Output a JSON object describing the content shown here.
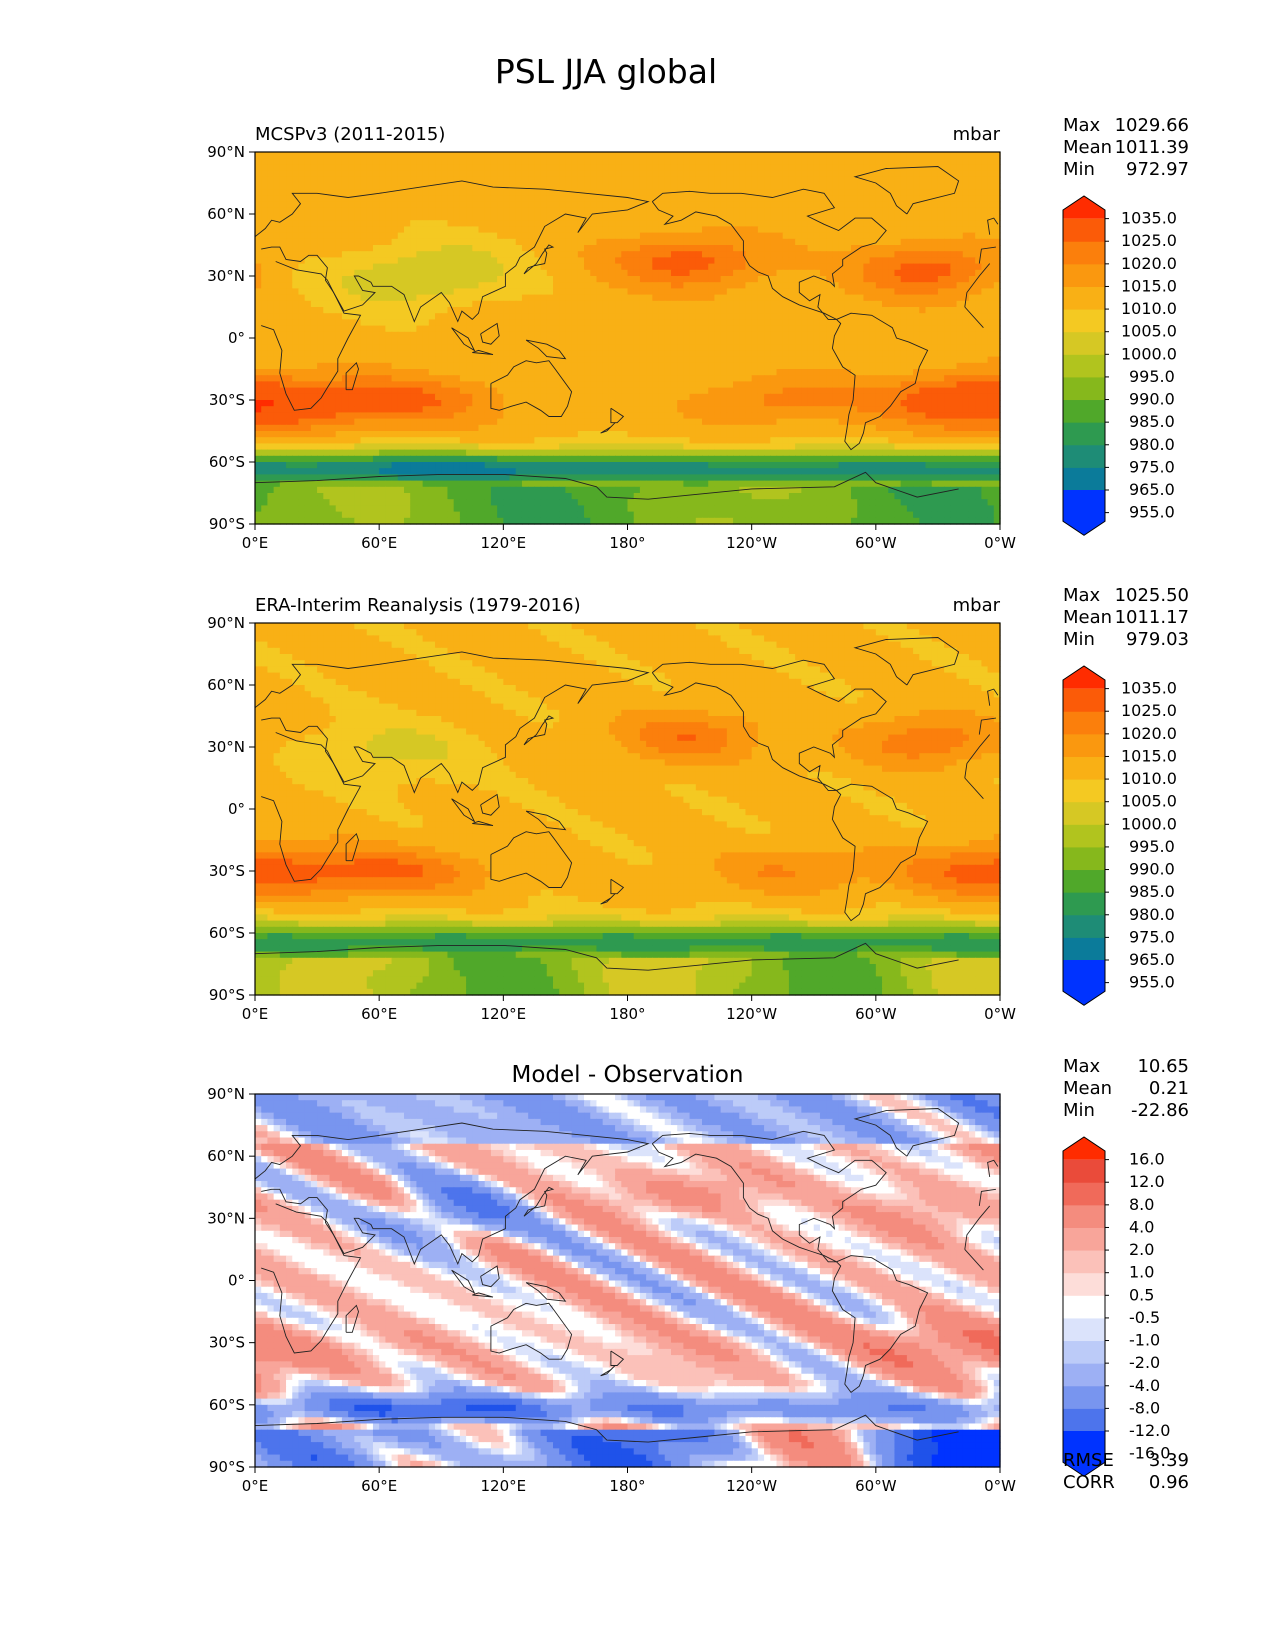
{
  "title": "PSL JJA global",
  "colors": {
    "abs_levels": [
      "#0033ff",
      "#0a55d6",
      "#0b7b9a",
      "#1e8c76",
      "#2e9a50",
      "#50a82a",
      "#86b81c",
      "#b1c41e",
      "#d6c824",
      "#f4c922",
      "#f9b015",
      "#fa980f",
      "#fb7f0c",
      "#fb5b08",
      "#ff2c00"
    ],
    "diff_levels": [
      "#0033ff",
      "#1f52ea",
      "#4d74ec",
      "#7895ef",
      "#9db0f4",
      "#bccbf8",
      "#dbe3fb",
      "#ffffff",
      "#fdddd9",
      "#fbc1b9",
      "#f8a59a",
      "#f48c7e",
      "#f06a5a",
      "#ea4b3a",
      "#ff2c00"
    ],
    "coast": "#222222"
  },
  "chart_data": [
    {
      "type": "heatmap",
      "title": "MCSPv3 (2011-2015)",
      "units": "mbar",
      "stats": [
        {
          "label": "Max",
          "value": "1029.66"
        },
        {
          "label": "Mean",
          "value": "1011.39"
        },
        {
          "label": "Min",
          "value": "972.97"
        }
      ],
      "colorbar_ticks": [
        "1035.0",
        "1025.0",
        "1020.0",
        "1015.0",
        "1010.0",
        "1005.0",
        "1000.0",
        "995.0",
        "990.0",
        "985.0",
        "980.0",
        "975.0",
        "965.0",
        "955.0"
      ],
      "colorbar_levels": [
        955,
        965,
        975,
        980,
        985,
        990,
        995,
        1000,
        1005,
        1010,
        1015,
        1020,
        1025,
        1035
      ],
      "x_ticks": [
        "0°E",
        "60°E",
        "120°E",
        "180°",
        "120°W",
        "60°W",
        "0°W"
      ],
      "y_ticks": [
        "90°N",
        "60°N",
        "30°N",
        "0°",
        "30°S",
        "60°S",
        "90°S"
      ],
      "xlim": [
        0,
        360
      ],
      "ylim": [
        -90,
        90
      ]
    },
    {
      "type": "heatmap",
      "title": "ERA-Interim Reanalysis (1979-2016)",
      "units": "mbar",
      "stats": [
        {
          "label": "Max",
          "value": "1025.50"
        },
        {
          "label": "Mean",
          "value": "1011.17"
        },
        {
          "label": "Min",
          "value": "979.03"
        }
      ],
      "colorbar_ticks": [
        "1035.0",
        "1025.0",
        "1020.0",
        "1015.0",
        "1010.0",
        "1005.0",
        "1000.0",
        "995.0",
        "990.0",
        "985.0",
        "980.0",
        "975.0",
        "965.0",
        "955.0"
      ],
      "colorbar_levels": [
        955,
        965,
        975,
        980,
        985,
        990,
        995,
        1000,
        1005,
        1010,
        1015,
        1020,
        1025,
        1035
      ],
      "x_ticks": [
        "0°E",
        "60°E",
        "120°E",
        "180°",
        "120°W",
        "60°W",
        "0°W"
      ],
      "y_ticks": [
        "90°N",
        "60°N",
        "30°N",
        "0°",
        "30°S",
        "60°S",
        "90°S"
      ],
      "xlim": [
        0,
        360
      ],
      "ylim": [
        -90,
        90
      ]
    },
    {
      "type": "heatmap",
      "title": "Model - Observation",
      "units": "",
      "stats": [
        {
          "label": "Max",
          "value": "10.65"
        },
        {
          "label": "Mean",
          "value": "0.21"
        },
        {
          "label": "Min",
          "value": "-22.86"
        }
      ],
      "colorbar_ticks": [
        "16.0",
        "12.0",
        "8.0",
        "4.0",
        "2.0",
        "1.0",
        "0.5",
        "-0.5",
        "-1.0",
        "-2.0",
        "-4.0",
        "-8.0",
        "-12.0",
        "-16.0"
      ],
      "colorbar_levels": [
        -16,
        -12,
        -8,
        -4,
        -2,
        -1,
        -0.5,
        0.5,
        1,
        2,
        4,
        8,
        12,
        16
      ],
      "x_ticks": [
        "0°E",
        "60°E",
        "120°E",
        "180°",
        "120°W",
        "60°W",
        "0°W"
      ],
      "y_ticks": [
        "90°N",
        "60°N",
        "30°N",
        "0°",
        "30°S",
        "60°S",
        "90°S"
      ],
      "xlim": [
        0,
        360
      ],
      "ylim": [
        -90,
        90
      ],
      "metrics": [
        {
          "label": "RMSE",
          "value": "3.39"
        },
        {
          "label": "CORR",
          "value": "0.96"
        }
      ]
    }
  ]
}
